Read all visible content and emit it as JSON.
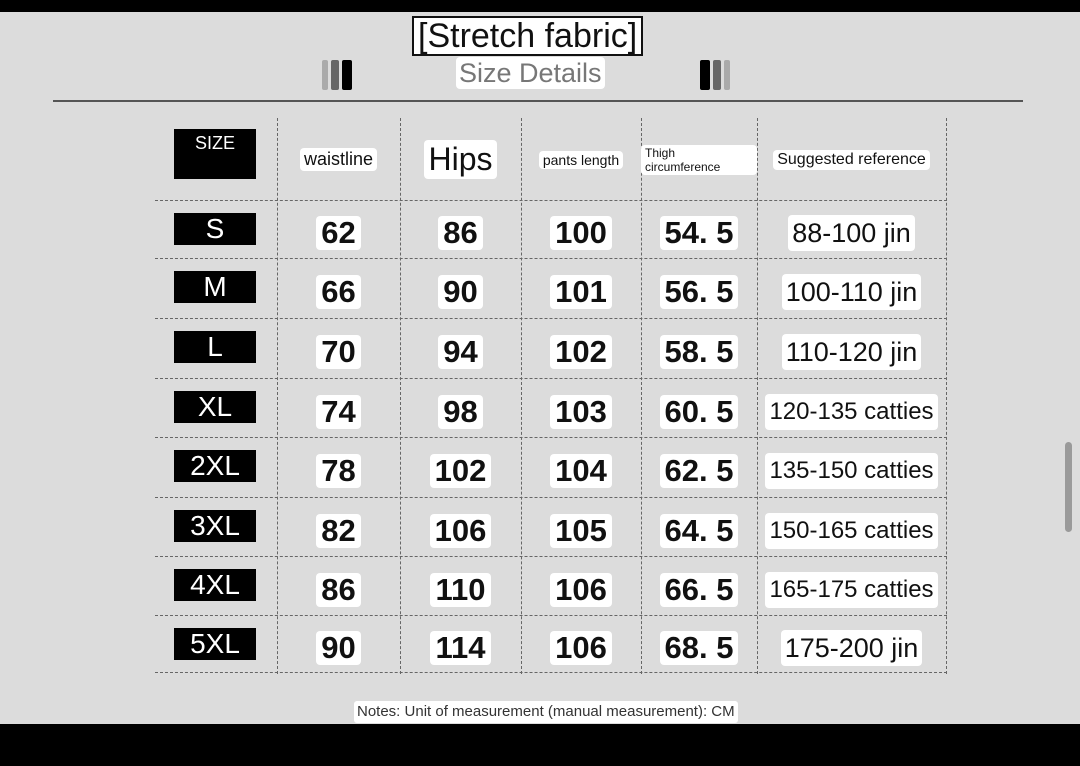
{
  "header": {
    "title": "[Stretch fabric]",
    "subtitle": "Size Details"
  },
  "table": {
    "columns": [
      "SIZE",
      "waistline",
      "Hips",
      "pants length",
      "Thigh circumference",
      "Suggested reference"
    ],
    "rows": [
      [
        "S",
        "62",
        "86",
        "100",
        "54. 5",
        "88-100 jin"
      ],
      [
        "M",
        "66",
        "90",
        "101",
        "56. 5",
        "100-110 jin"
      ],
      [
        "L",
        "70",
        "94",
        "102",
        "58. 5",
        "110-120 jin"
      ],
      [
        "XL",
        "74",
        "98",
        "103",
        "60. 5",
        "120-135 catties"
      ],
      [
        "2XL",
        "78",
        "102",
        "104",
        "62. 5",
        "135-150 catties"
      ],
      [
        "3XL",
        "82",
        "106",
        "105",
        "64. 5",
        "150-165 catties"
      ],
      [
        "4XL",
        "86",
        "110",
        "106",
        "66. 5",
        "165-175 catties"
      ],
      [
        "5XL",
        "90",
        "114",
        "106",
        "68. 5",
        "175-200 jin"
      ]
    ]
  },
  "note": "Notes: Unit of measurement (manual measurement): CM"
}
